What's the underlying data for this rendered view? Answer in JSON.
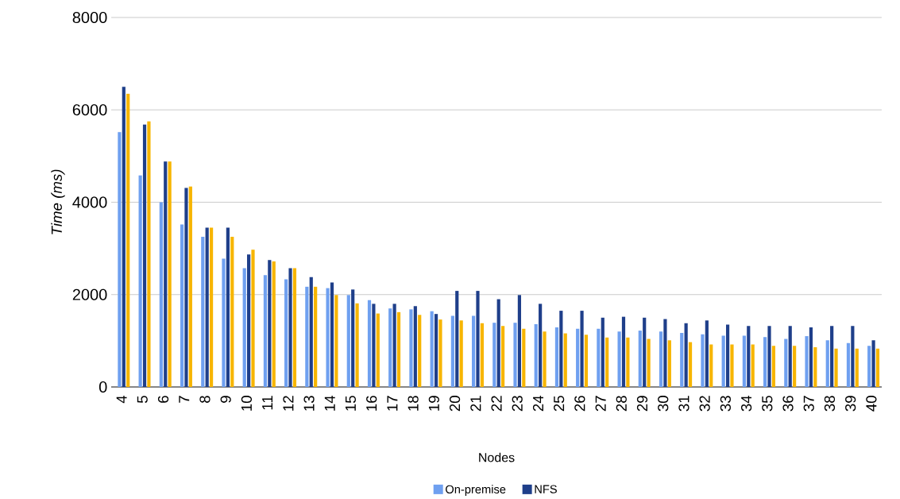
{
  "chart_data": {
    "type": "bar",
    "xlabel": "Nodes",
    "ylabel": "Time (ms)",
    "categories": [
      "4",
      "5",
      "6",
      "7",
      "8",
      "9",
      "10",
      "11",
      "12",
      "13",
      "14",
      "15",
      "16",
      "17",
      "18",
      "19",
      "20",
      "21",
      "22",
      "23",
      "24",
      "25",
      "26",
      "27",
      "28",
      "29",
      "30",
      "31",
      "32",
      "33",
      "34",
      "35",
      "36",
      "37",
      "38",
      "39",
      "40"
    ],
    "series": [
      {
        "name": "On-premise",
        "color": "#6fa0f0",
        "values": [
          5520,
          4580,
          4000,
          3520,
          3250,
          2780,
          2570,
          2420,
          2330,
          2170,
          2140,
          1990,
          1880,
          1700,
          1680,
          1640,
          1540,
          1540,
          1390,
          1390,
          1360,
          1290,
          1260,
          1260,
          1200,
          1220,
          1200,
          1170,
          1140,
          1110,
          1110,
          1080,
          1040,
          1100,
          1010,
          950,
          890
        ]
      },
      {
        "name": "NFS",
        "color": "#1f3f8a",
        "values": [
          6500,
          5680,
          4880,
          4310,
          3450,
          3450,
          2870,
          2750,
          2570,
          2380,
          2260,
          2110,
          1800,
          1800,
          1750,
          1580,
          2080,
          2080,
          1900,
          1990,
          1800,
          1650,
          1650,
          1500,
          1520,
          1500,
          1470,
          1380,
          1440,
          1350,
          1320,
          1320,
          1320,
          1290,
          1320,
          1320,
          1010
        ]
      },
      {
        "color": "#f7b500",
        "values": [
          6350,
          5750,
          4880,
          4340,
          3450,
          3250,
          2970,
          2720,
          2570,
          2170,
          1990,
          1810,
          1590,
          1620,
          1560,
          1460,
          1440,
          1380,
          1320,
          1260,
          1200,
          1160,
          1130,
          1070,
          1070,
          1040,
          1010,
          970,
          920,
          920,
          920,
          890,
          890,
          860,
          830,
          830,
          830
        ]
      }
    ],
    "ylim": [
      0,
      8000
    ],
    "yticks": [
      0,
      2000,
      4000,
      6000,
      8000
    ],
    "grid": "y",
    "legend": "bottom"
  }
}
